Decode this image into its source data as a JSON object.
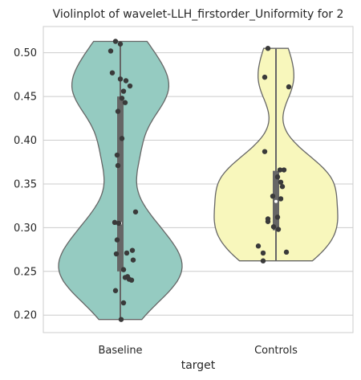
{
  "chart_data": {
    "type": "violin",
    "title": "Violinplot of wavelet-LLH_firstorder_Uniformity for 2",
    "xlabel": "target",
    "ylabel": "",
    "categories": [
      "Baseline",
      "Controls"
    ],
    "ylim": [
      0.18,
      0.53
    ],
    "yticks": [
      0.2,
      0.25,
      0.3,
      0.35,
      0.4,
      0.45,
      0.5
    ],
    "ytick_labels": [
      "0.20",
      "0.25",
      "0.30",
      "0.35",
      "0.40",
      "0.45",
      "0.50"
    ],
    "grid": true,
    "series": [
      {
        "category": "Baseline",
        "color": "#95cbc1",
        "min": 0.195,
        "max": 0.513,
        "q1": 0.25,
        "median": 0.305,
        "q3": 0.45,
        "points": [
          0.513,
          0.51,
          0.502,
          0.477,
          0.47,
          0.468,
          0.462,
          0.456,
          0.448,
          0.443,
          0.433,
          0.402,
          0.383,
          0.371,
          0.318,
          0.306,
          0.305,
          0.286,
          0.274,
          0.271,
          0.27,
          0.263,
          0.252,
          0.244,
          0.243,
          0.241,
          0.24,
          0.228,
          0.214,
          0.195
        ]
      },
      {
        "category": "Controls",
        "color": "#f8f7bc",
        "min": 0.262,
        "max": 0.505,
        "q1": 0.297,
        "median": 0.33,
        "q3": 0.365,
        "points": [
          0.505,
          0.472,
          0.461,
          0.387,
          0.366,
          0.366,
          0.358,
          0.352,
          0.347,
          0.336,
          0.333,
          0.312,
          0.31,
          0.307,
          0.301,
          0.298,
          0.279,
          0.272,
          0.271,
          0.262
        ]
      }
    ]
  }
}
